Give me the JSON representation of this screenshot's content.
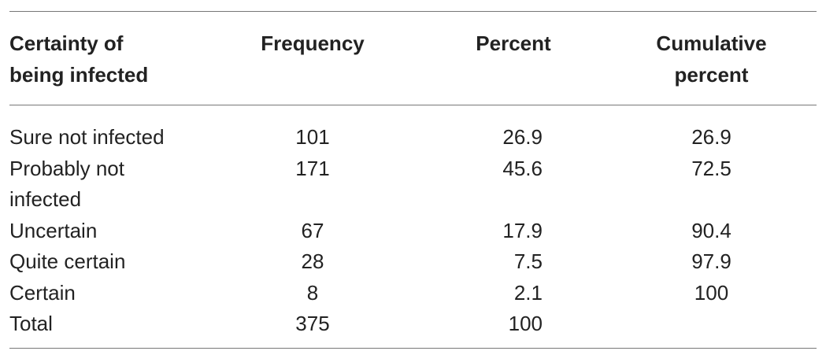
{
  "table": {
    "header": [
      "Certainty of being infected",
      "Frequency",
      "Percent",
      "Cumulative percent"
    ],
    "rows": [
      [
        "Sure not infected",
        101,
        26.9,
        26.9
      ],
      [
        "Probably not infected",
        171,
        45.6,
        72.5
      ],
      [
        "Uncertain",
        67,
        17.9,
        90.4
      ],
      [
        "Quite certain",
        28,
        7.5,
        97.9
      ],
      [
        "Certain",
        8,
        2.1,
        100
      ],
      [
        "Total",
        375,
        100
      ]
    ]
  }
}
